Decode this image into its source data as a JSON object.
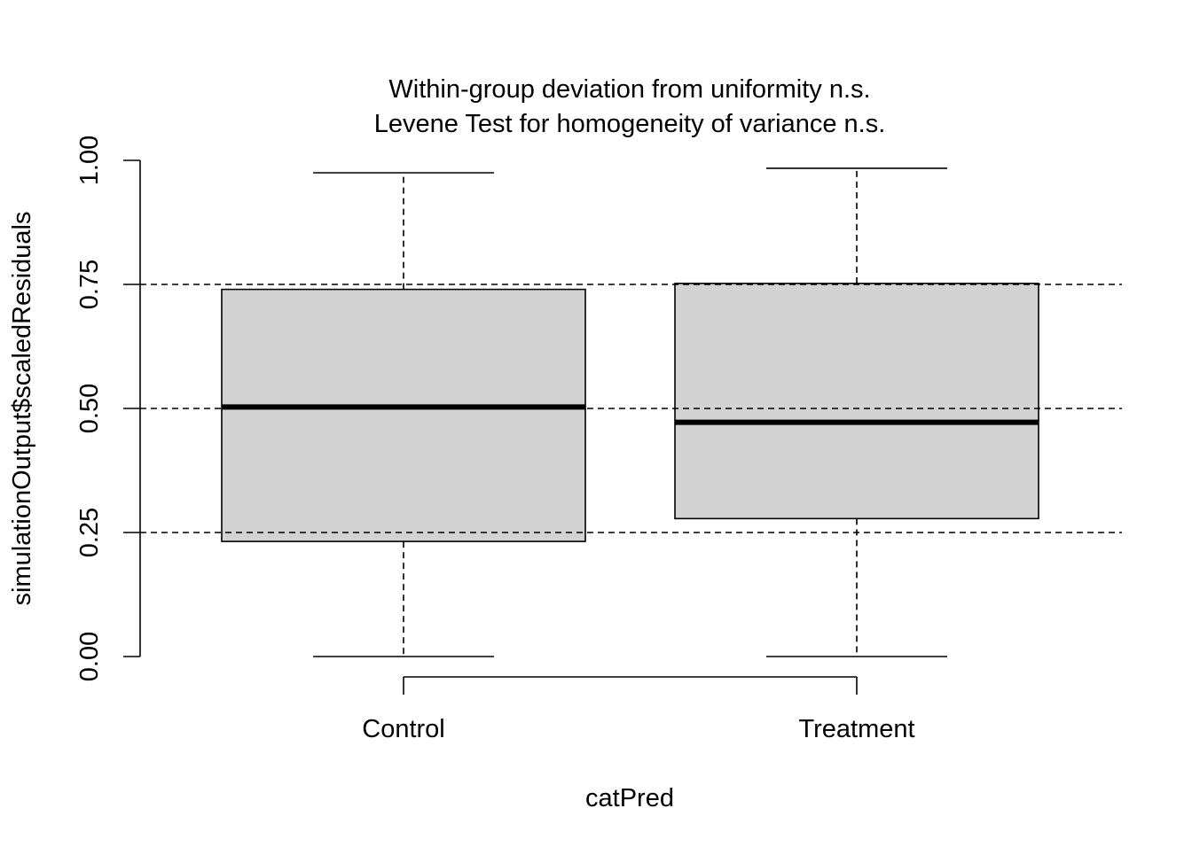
{
  "chart_data": {
    "type": "boxplot",
    "title": [
      "Within-group deviation from uniformity n.s.",
      "Levene Test for homogeneity of variance n.s."
    ],
    "xlabel": "catPred",
    "ylabel": "simulationOutput$scaledResiduals",
    "categories": [
      "Control",
      "Treatment"
    ],
    "ylim": [
      0,
      1
    ],
    "yticks": [
      0.0,
      0.25,
      0.5,
      0.75,
      1.0
    ],
    "ytick_labels": [
      "0.00",
      "0.25",
      "0.50",
      "0.75",
      "1.00"
    ],
    "reference_lines": [
      0.25,
      0.5,
      0.75
    ],
    "boxes": [
      {
        "category": "Control",
        "min": 0.0,
        "q1": 0.232,
        "median": 0.503,
        "q3": 0.74,
        "max": 0.975
      },
      {
        "category": "Treatment",
        "min": 0.0,
        "q1": 0.278,
        "median": 0.472,
        "q3": 0.752,
        "max": 0.984
      }
    ],
    "colors": {
      "box_fill": "#d3d3d3",
      "stroke": "#000000",
      "background": "#ffffff"
    },
    "grid": false,
    "legend": "none"
  }
}
